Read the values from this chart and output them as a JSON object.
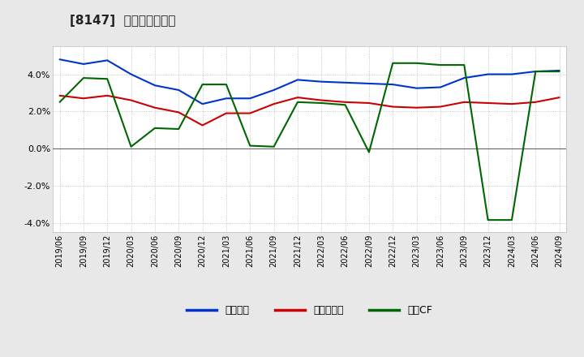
{
  "title": "[8147]  マージンの推移",
  "x_labels": [
    "2019/06",
    "2019/09",
    "2019/12",
    "2020/03",
    "2020/06",
    "2020/09",
    "2020/12",
    "2021/03",
    "2021/06",
    "2021/09",
    "2021/12",
    "2022/03",
    "2022/06",
    "2022/09",
    "2022/12",
    "2023/03",
    "2023/06",
    "2023/09",
    "2023/12",
    "2024/03",
    "2024/06",
    "2024/09"
  ],
  "blue": [
    4.8,
    4.55,
    4.75,
    4.0,
    3.4,
    3.15,
    2.4,
    2.7,
    2.7,
    3.15,
    3.7,
    3.6,
    3.55,
    3.5,
    3.45,
    3.25,
    3.3,
    3.8,
    4.0,
    4.0,
    4.15,
    4.2
  ],
  "red": [
    2.85,
    2.7,
    2.85,
    2.6,
    2.2,
    1.95,
    1.25,
    1.9,
    1.9,
    2.4,
    2.75,
    2.6,
    2.5,
    2.45,
    2.25,
    2.2,
    2.25,
    2.5,
    2.45,
    2.4,
    2.5,
    2.75
  ],
  "green": [
    2.5,
    3.8,
    3.75,
    0.1,
    1.1,
    1.05,
    3.45,
    3.45,
    0.15,
    0.1,
    2.5,
    2.45,
    2.35,
    -0.2,
    4.6,
    4.6,
    4.5,
    4.5,
    -3.85,
    -3.85,
    4.15,
    4.15
  ],
  "blue_color": "#0033cc",
  "red_color": "#cc0000",
  "green_color": "#006600",
  "ylim": [
    -4.5,
    5.5
  ],
  "yticks": [
    -4.0,
    -2.0,
    0.0,
    2.0,
    4.0
  ],
  "legend_labels": [
    "経常利益",
    "当期純利益",
    "営業CF"
  ],
  "bg_color": "#e8e8e8",
  "plot_bg_color": "#ffffff",
  "title_fontsize": 11,
  "tick_fontsize": 7,
  "legend_fontsize": 9
}
